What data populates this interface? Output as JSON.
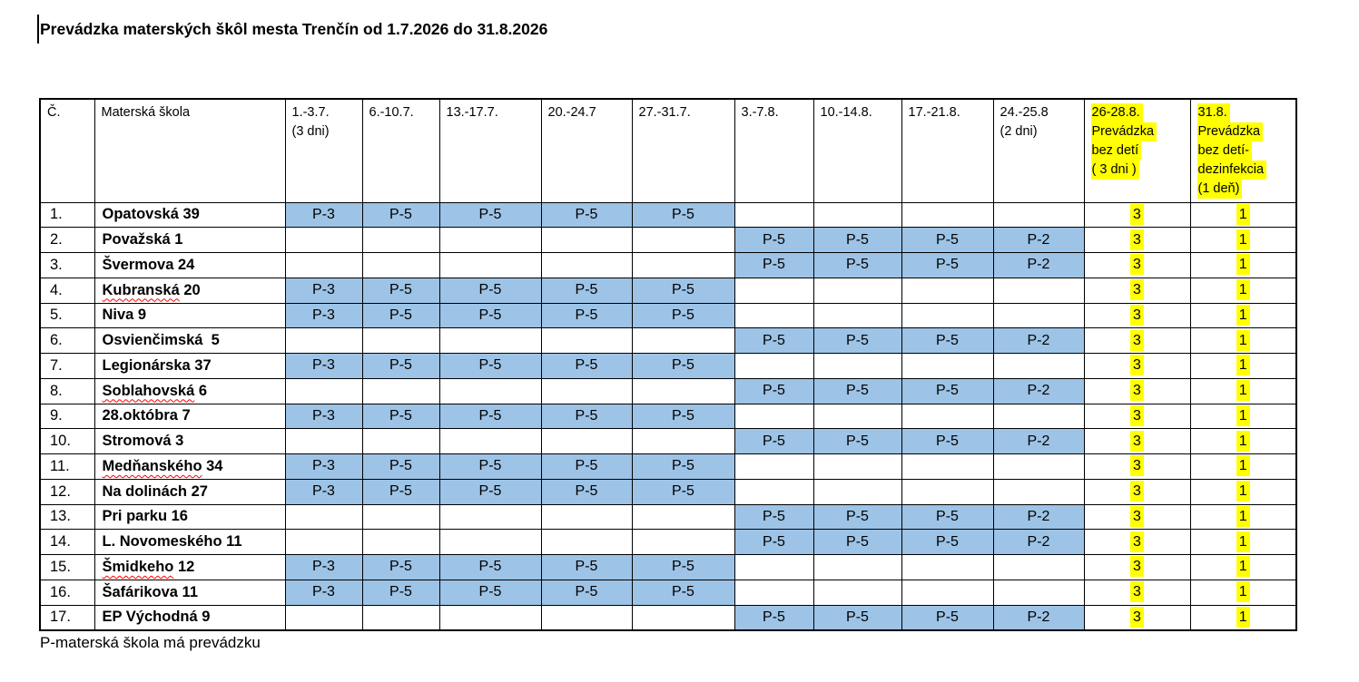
{
  "title": "Prevádzka materských škôl mesta Trenčín od 1.7.2026 do 31.8.2026",
  "footnote": "P-materská škola má prevádzku",
  "colors": {
    "operating_blue": "#9DC3E6",
    "highlight_yellow": "#FFFF00",
    "misspell_red": "#FF0000"
  },
  "table": {
    "columns": [
      {
        "label": "Č."
      },
      {
        "label": "Materská škola"
      },
      {
        "label": "1.-3.7.\n(3 dni)"
      },
      {
        "label": "6.-10.7."
      },
      {
        "label": "13.-17.7."
      },
      {
        "label": "20.-24.7"
      },
      {
        "label": "27.-31.7."
      },
      {
        "label": "3.-7.8."
      },
      {
        "label": "10.-14.8."
      },
      {
        "label": "17.-21.8."
      },
      {
        "label": "24.-25.8\n(2 dni)"
      },
      {
        "highlight": true,
        "lines": [
          "26-28.8.",
          "Prevádzka",
          "bez detí",
          "( 3 dni )"
        ]
      },
      {
        "highlight": true,
        "lines": [
          "31.8.",
          "Prevádzka",
          "bez detí-",
          "dezinfekcia",
          "(1 deň)"
        ]
      }
    ],
    "rows": [
      {
        "num": "1.",
        "name": "Opatovská 39",
        "wavy": "",
        "jul": [
          "P-3",
          "P-5",
          "P-5",
          "P-5",
          "P-5"
        ],
        "aug": [
          "",
          "",
          "",
          ""
        ],
        "bez_deti": "3",
        "dezinfekcia": "1"
      },
      {
        "num": "2.",
        "name": "Považská 1",
        "wavy": "",
        "jul": [
          "",
          "",
          "",
          "",
          ""
        ],
        "aug": [
          "P-5",
          "P-5",
          "P-5",
          "P-2"
        ],
        "bez_deti": "3",
        "dezinfekcia": "1"
      },
      {
        "num": "3.",
        "name": "Švermova 24",
        "wavy": "",
        "jul": [
          "",
          "",
          "",
          "",
          ""
        ],
        "aug": [
          "P-5",
          "P-5",
          "P-5",
          "P-2"
        ],
        "bez_deti": "3",
        "dezinfekcia": "1"
      },
      {
        "num": "4.",
        "name": "Kubranská 20",
        "wavy": "Kubranská",
        "jul": [
          "P-3",
          "P-5",
          "P-5",
          "P-5",
          "P-5"
        ],
        "aug": [
          "",
          "",
          "",
          ""
        ],
        "bez_deti": "3",
        "dezinfekcia": "1"
      },
      {
        "num": "5.",
        "name": "Niva 9",
        "wavy": "",
        "jul": [
          "P-3",
          "P-5",
          "P-5",
          "P-5",
          "P-5"
        ],
        "aug": [
          "",
          "",
          "",
          ""
        ],
        "bez_deti": "3",
        "dezinfekcia": "1"
      },
      {
        "num": "6.",
        "name": "Osvienčimská  5",
        "wavy": "",
        "jul": [
          "",
          "",
          "",
          "",
          ""
        ],
        "aug": [
          "P-5",
          "P-5",
          "P-5",
          "P-2"
        ],
        "bez_deti": "3",
        "dezinfekcia": "1"
      },
      {
        "num": "7.",
        "name": "Legionárska 37",
        "wavy": "",
        "jul": [
          "P-3",
          "P-5",
          "P-5",
          "P-5",
          "P-5"
        ],
        "aug": [
          "",
          "",
          "",
          ""
        ],
        "bez_deti": "3",
        "dezinfekcia": "1"
      },
      {
        "num": "8.",
        "name": "Soblahovská 6",
        "wavy": "Soblahovská",
        "jul": [
          "",
          "",
          "",
          "",
          ""
        ],
        "aug": [
          "P-5",
          "P-5",
          "P-5",
          "P-2"
        ],
        "bez_deti": "3",
        "dezinfekcia": "1"
      },
      {
        "num": "9.",
        "name": "28.októbra 7",
        "wavy": "",
        "jul": [
          "P-3",
          "P-5",
          "P-5",
          "P-5",
          "P-5"
        ],
        "aug": [
          "",
          "",
          "",
          ""
        ],
        "bez_deti": "3",
        "dezinfekcia": "1"
      },
      {
        "num": "10.",
        "name": "Stromová 3",
        "wavy": "",
        "jul": [
          "",
          "",
          "",
          "",
          ""
        ],
        "aug": [
          "P-5",
          "P-5",
          "P-5",
          "P-2"
        ],
        "bez_deti": "3",
        "dezinfekcia": "1"
      },
      {
        "num": "11.",
        "name": "Medňanského 34",
        "wavy": "Medňanského",
        "jul": [
          "P-3",
          "P-5",
          "P-5",
          "P-5",
          "P-5"
        ],
        "aug": [
          "",
          "",
          "",
          ""
        ],
        "bez_deti": "3",
        "dezinfekcia": "1"
      },
      {
        "num": "12.",
        "name": "Na dolinách 27",
        "wavy": "",
        "jul": [
          "P-3",
          "P-5",
          "P-5",
          "P-5",
          "P-5"
        ],
        "aug": [
          "",
          "",
          "",
          ""
        ],
        "bez_deti": "3",
        "dezinfekcia": "1"
      },
      {
        "num": "13.",
        "name": "Pri parku 16",
        "wavy": "",
        "jul": [
          "",
          "",
          "",
          "",
          ""
        ],
        "aug": [
          "P-5",
          "P-5",
          "P-5",
          "P-2"
        ],
        "bez_deti": "3",
        "dezinfekcia": "1"
      },
      {
        "num": "14.",
        "name": "L. Novomeského 11",
        "wavy": "",
        "jul": [
          "",
          "",
          "",
          "",
          ""
        ],
        "aug": [
          "P-5",
          "P-5",
          "P-5",
          "P-2"
        ],
        "bez_deti": "3",
        "dezinfekcia": "1"
      },
      {
        "num": "15.",
        "name": "Šmidkeho 12",
        "wavy": "Šmidkeho",
        "jul": [
          "P-3",
          "P-5",
          "P-5",
          "P-5",
          "P-5"
        ],
        "aug": [
          "",
          "",
          "",
          ""
        ],
        "bez_deti": "3",
        "dezinfekcia": "1"
      },
      {
        "num": "16.",
        "name": "Šafárikova 11",
        "wavy": "",
        "jul": [
          "P-3",
          "P-5",
          "P-5",
          "P-5",
          "P-5"
        ],
        "aug": [
          "",
          "",
          "",
          ""
        ],
        "bez_deti": "3",
        "dezinfekcia": "1"
      },
      {
        "num": "17.",
        "name": "EP Východná 9",
        "wavy": "",
        "jul": [
          "",
          "",
          "",
          "",
          ""
        ],
        "aug": [
          "P-5",
          "P-5",
          "P-5",
          "P-2"
        ],
        "bez_deti": "3",
        "dezinfekcia": "1"
      }
    ]
  }
}
